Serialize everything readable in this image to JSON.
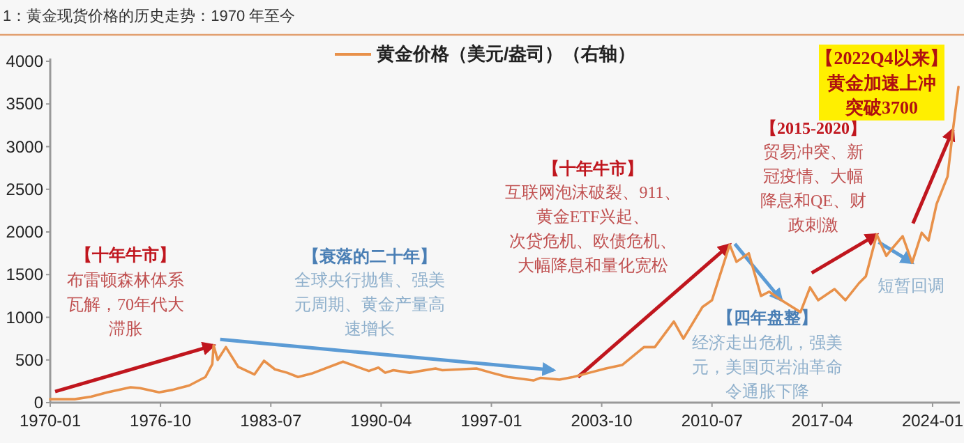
{
  "chart_data": {
    "type": "line",
    "title": "1：黄金现货价格的历史走势：1970 年至今",
    "x": [
      "1970-01",
      "1971-07",
      "1972-07",
      "1973-07",
      "1974-12",
      "1975-07",
      "1976-09",
      "1977-07",
      "1978-07",
      "1979-07",
      "1979-12",
      "1980-01",
      "1980-04",
      "1980-10",
      "1981-07",
      "1982-07",
      "1983-02",
      "1983-10",
      "1984-07",
      "1985-03",
      "1986-01",
      "1987-12",
      "1988-07",
      "1989-07",
      "1990-02",
      "1990-07",
      "1991-01",
      "1992-01",
      "1993-08",
      "1994-01",
      "1996-02",
      "1997-01",
      "1998-01",
      "1999-08",
      "2000-01",
      "2001-03",
      "2002-01",
      "2003-01",
      "2004-01",
      "2005-01",
      "2006-05",
      "2007-01",
      "2008-03",
      "2008-10",
      "2009-12",
      "2010-07",
      "2011-08",
      "2012-01",
      "2012-10",
      "2013-07",
      "2014-01",
      "2014-10",
      "2015-12",
      "2016-07",
      "2017-01",
      "2018-01",
      "2018-09",
      "2019-07",
      "2019-12",
      "2020-08",
      "2021-03",
      "2021-07",
      "2022-03",
      "2022-10",
      "2023-05",
      "2023-10",
      "2024-04",
      "2024-12",
      "2025-04",
      "2025-08"
    ],
    "series": [
      {
        "name": "黄金价格（美元/盎司）（右轴）",
        "color": "#e8914a",
        "values": [
          40,
          40,
          70,
          120,
          180,
          170,
          120,
          150,
          200,
          300,
          450,
          670,
          500,
          650,
          420,
          330,
          490,
          390,
          350,
          300,
          340,
          480,
          440,
          370,
          410,
          350,
          380,
          350,
          400,
          380,
          400,
          350,
          300,
          260,
          290,
          270,
          300,
          350,
          400,
          440,
          650,
          650,
          950,
          750,
          1120,
          1200,
          1850,
          1650,
          1750,
          1250,
          1300,
          1200,
          1060,
          1350,
          1200,
          1330,
          1200,
          1400,
          1480,
          1970,
          1720,
          1800,
          1950,
          1640,
          1990,
          1900,
          2330,
          2650,
          3200,
          3700
        ]
      }
    ],
    "xlim": [
      "1970-01",
      "2025-09"
    ],
    "xticks": [
      "1970-01",
      "1976-10",
      "1983-07",
      "1990-04",
      "1997-01",
      "2003-10",
      "2010-07",
      "2017-04",
      "2024-01"
    ],
    "ylim": [
      0,
      4000
    ],
    "yticks": [
      0,
      500,
      1000,
      1500,
      2000,
      2500,
      3000,
      3500,
      4000
    ],
    "legend": "top",
    "grid": false,
    "annotations": [
      "【十年牛市】",
      {
        "text": "布雷顿森林体系瓦解，70年代大滞胀",
        "x": "1980-01",
        "y": 670
      },
      "【衰落的二十年】",
      "全球央行抛售、强美元周期、黄金产量高速增长",
      "【十年牛市】",
      {
        "text": "互联网泡沫破裂、911、黄金ETF兴起、次贷危机、欧债危机、大幅降息和量化宽松",
        "x": "2011-08",
        "y": 1850
      },
      "【四年盘整】",
      {
        "text": "经济走出危机，强美元，美国页岩油革命令通胀下降",
        "x": "2014-10",
        "y": 1200
      },
      "【2015-2020】",
      {
        "text": "贸易冲突、新冠疫情、大幅降息和QE、财政刺激",
        "x": "2020-08",
        "y": 1970
      },
      {
        "text": "短暂回调",
        "x": "2022-10",
        "y": 1640
      },
      "【2022Q4以来】",
      {
        "text": "黄金加速上冲突破3700",
        "x": "2025-04",
        "y": 3200
      }
    ]
  }
}
